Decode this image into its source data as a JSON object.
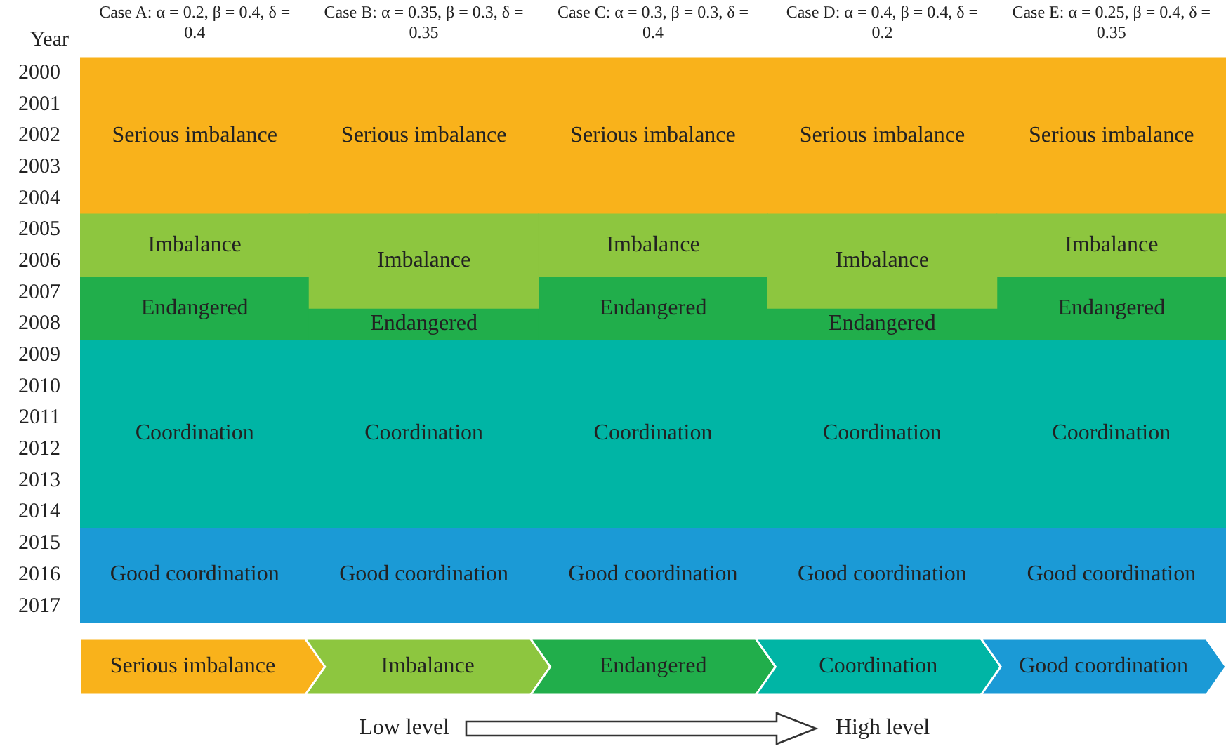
{
  "chart_data": {
    "type": "bar",
    "ylabel": "Year",
    "categories": [
      "Case A: α = 0.2, β = 0.4, δ = 0.4",
      "Case B: α = 0.35, β = 0.3, δ = 0.35",
      "Case C: α = 0.3, β = 0.3, δ = 0.4",
      "Case D: α = 0.4, β = 0.4, δ = 0.2",
      "Case E: α = 0.25, β = 0.4, δ = 0.35"
    ],
    "ylim": [
      2017.5,
      1999.5
    ],
    "yticks": [
      2000,
      2001,
      2002,
      2003,
      2004,
      2005,
      2006,
      2007,
      2008,
      2009,
      2010,
      2011,
      2012,
      2013,
      2014,
      2015,
      2016,
      2017
    ],
    "bands": [
      {
        "axis": "y",
        "from": 1999.5,
        "to": 2004.5,
        "label": "Serious imbalance",
        "color": "#f9b21b"
      },
      {
        "axis": "y",
        "from": 2008.5,
        "to": 2014.5,
        "label": "Coordination",
        "color": "#00b5a5"
      },
      {
        "axis": "y",
        "from": 2014.5,
        "to": 2017.5,
        "label": "Good coordination",
        "color": "#1b9ad6"
      }
    ],
    "series": [
      {
        "name": "Imbalance",
        "color": "#8dc63f",
        "base": [
          2004.5,
          2004.5,
          2004.5,
          2004.5,
          2004.5
        ],
        "values": [
          2,
          3,
          2,
          3,
          2
        ],
        "value_labels": [
          "Imbalance",
          "Imbalance",
          "Imbalance",
          "Imbalance",
          "Imbalance"
        ]
      },
      {
        "name": "Endangered",
        "color": "#21ae4b",
        "base": [
          2006.5,
          2007.5,
          2006.5,
          2007.5,
          2006.5
        ],
        "values": [
          2,
          1,
          2,
          1,
          2
        ],
        "value_labels": [
          "Endangered",
          "Endangered",
          "Endangered",
          "Endangered",
          "Endangered"
        ]
      }
    ],
    "legend": "bottom",
    "annotations": [
      "Low level",
      "High level"
    ]
  }
}
